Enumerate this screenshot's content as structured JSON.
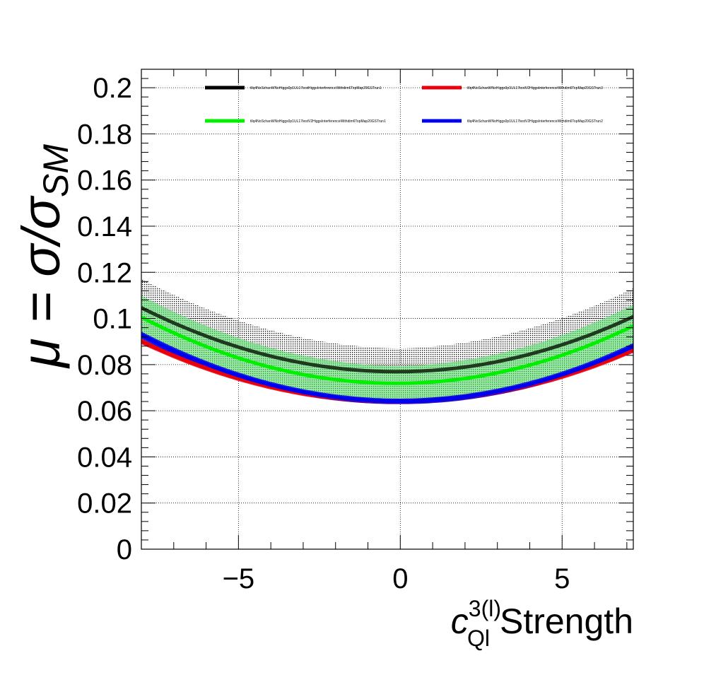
{
  "chart_data": {
    "type": "line",
    "xlabel": {
      "base": "c",
      "superscript": "3(l)",
      "subscript": "Ql",
      "suffix": "Strength"
    },
    "ylabel": {
      "prefix": "μ = σ/σ",
      "subscript": "SM"
    },
    "xlim": [
      -8,
      7.2
    ],
    "ylim": [
      0,
      0.208
    ],
    "x_ticks": [
      -5,
      0,
      5
    ],
    "x_tick_labels": [
      "−5",
      "0",
      "5"
    ],
    "y_ticks": [
      0,
      0.02,
      0.04,
      0.06,
      0.08,
      0.1,
      0.12,
      0.14,
      0.16,
      0.18,
      0.2
    ],
    "y_tick_labels": [
      "0",
      "0.02",
      "0.04",
      "0.06",
      "0.08",
      "0.1",
      "0.12",
      "0.14",
      "0.16",
      "0.18",
      "0.2"
    ],
    "grid": true,
    "legend_position": "top",
    "series": [
      {
        "name": "tllq4NoSchanWNoHiggs0p1UL17testHiggsInterferenceWithdim6TopMap20GSTrun1",
        "color": "#000000",
        "band_color": "#000000",
        "x": [
          -8,
          -6,
          -4,
          -2,
          0,
          2,
          4,
          6,
          7.2
        ],
        "y": [
          0.104,
          0.0925,
          0.0845,
          0.079,
          0.077,
          0.0785,
          0.0835,
          0.093,
          0.102
        ],
        "band_half_width": 0.01
      },
      {
        "name": "tllq4NoSchanWNoHiggs0p1UL17testV2HiggsInterferenceWithdim6TopMap20GSTrun3",
        "color": "#e8000b",
        "x": [
          -8,
          -6,
          -4,
          -2,
          0,
          2,
          4,
          6,
          7.2
        ],
        "y": [
          0.089,
          0.079,
          0.0715,
          0.0665,
          0.064,
          0.065,
          0.0695,
          0.079,
          0.088
        ],
        "band_half_width": 0.001
      },
      {
        "name": "tllq4NoSchanWNoHiggs0p1UL17testV2HiggsInterferenceWithdim6TopMap20GSTrun1",
        "color": "#00f000",
        "band_color": "#2db04a",
        "x": [
          -8,
          -6,
          -4,
          -2,
          0,
          2,
          4,
          6,
          7.2
        ],
        "y": [
          0.1,
          0.088,
          0.0795,
          0.074,
          0.072,
          0.0735,
          0.079,
          0.0885,
          0.098
        ],
        "band_half_width": 0.0075
      },
      {
        "name": "tllq4NoSchanWNoHiggs0p1UL17testV2HiggsInterferenceWithdim6TopMap20GSTrun2",
        "color": "#0000f0",
        "x": [
          -8,
          -6,
          -4,
          -2,
          0,
          2,
          4,
          6,
          7.2
        ],
        "y": [
          0.092,
          0.0805,
          0.072,
          0.0665,
          0.064,
          0.0655,
          0.0705,
          0.0795,
          0.0895
        ],
        "band_half_width": 0.0012
      }
    ]
  }
}
